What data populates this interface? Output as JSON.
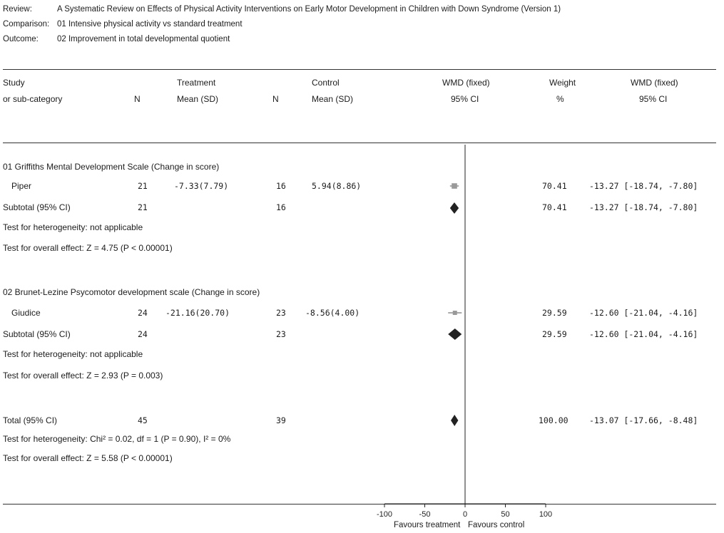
{
  "meta": {
    "review_label": "Review:",
    "review_value": "A Systematic Review on Effects of Physical Activity Interventions on Early Motor Development in Children with Down Syndrome (Version 1)",
    "comparison_label": "Comparison:",
    "comparison_value": "01 Intensive physical activity vs standard treatment",
    "outcome_label": "Outcome:",
    "outcome_value": "02 Improvement in total developmental quotient"
  },
  "headers": {
    "study_1": "Study",
    "study_2": "or sub-category",
    "n_treat": "N",
    "treatment_1": "Treatment",
    "treatment_2": "Mean (SD)",
    "n_ctrl": "N",
    "control_1": "Control",
    "control_2": "Mean (SD)",
    "wmd_plot_1": "WMD (fixed)",
    "wmd_plot_2": "95% CI",
    "weight_1": "Weight",
    "weight_2": "%",
    "wmd_val_1": "WMD (fixed)",
    "wmd_val_2": "95% CI"
  },
  "groups": [
    {
      "title": "01 Griffiths Mental Development Scale (Change in score)",
      "study": {
        "name": "Piper",
        "n_t": "21",
        "mean_sd_t": "-7.33(7.79)",
        "n_c": "16",
        "mean_sd_c": "5.94(8.86)",
        "weight": "70.41",
        "ci_text": "-13.27 [-18.74, -7.80]"
      },
      "subtotal": {
        "label": "Subtotal (95% CI)",
        "n_t": "21",
        "n_c": "16",
        "weight": "70.41",
        "ci_text": "-13.27 [-18.74, -7.80]"
      },
      "heterogeneity": "Test for heterogeneity: not applicable",
      "overall": "Test for overall effect: Z = 4.75 (P < 0.00001)"
    },
    {
      "title": "02 Brunet-Lezine Psycomotor development scale (Change in score)",
      "study": {
        "name": "Giudice",
        "n_t": "24",
        "mean_sd_t": "-21.16(20.70)",
        "n_c": "23",
        "mean_sd_c": "-8.56(4.00)",
        "weight": "29.59",
        "ci_text": "-12.60 [-21.04, -4.16]"
      },
      "subtotal": {
        "label": "Subtotal (95% CI)",
        "n_t": "24",
        "n_c": "23",
        "weight": "29.59",
        "ci_text": "-12.60 [-21.04, -4.16]"
      },
      "heterogeneity": "Test for heterogeneity: not applicable",
      "overall": "Test for overall effect: Z = 2.93 (P = 0.003)"
    }
  ],
  "total": {
    "label": "Total (95% CI)",
    "n_t": "45",
    "n_c": "39",
    "weight": "100.00",
    "ci_text": "-13.07 [-17.66, -8.48]",
    "heterogeneity": "Test for heterogeneity: Chi² = 0.02, df = 1 (P = 0.90), I² = 0%",
    "overall": "Test for overall effect: Z = 5.58 (P < 0.00001)"
  },
  "axis": {
    "favours_left": "Favours treatment",
    "favours_right": "Favours control"
  },
  "chart_data": {
    "type": "forest",
    "xlim": [
      -100,
      100
    ],
    "ticks": [
      -100,
      -50,
      0,
      50,
      100
    ],
    "tick_labels": [
      "-100",
      "-50",
      "0",
      "50",
      "100"
    ],
    "studies": [
      {
        "name": "Piper",
        "estimate": -13.27,
        "lower": -18.74,
        "upper": -7.8,
        "weight": 70.41
      },
      {
        "name": "Giudice",
        "estimate": -12.6,
        "lower": -21.04,
        "upper": -4.16,
        "weight": 29.59
      }
    ],
    "subtotals": [
      {
        "label": "Subtotal (95% CI)",
        "estimate": -13.27,
        "lower": -18.74,
        "upper": -7.8
      },
      {
        "label": "Subtotal (95% CI)",
        "estimate": -12.6,
        "lower": -21.04,
        "upper": -4.16
      }
    ],
    "total": {
      "label": "Total (95% CI)",
      "estimate": -13.07,
      "lower": -17.66,
      "upper": -8.48
    }
  }
}
